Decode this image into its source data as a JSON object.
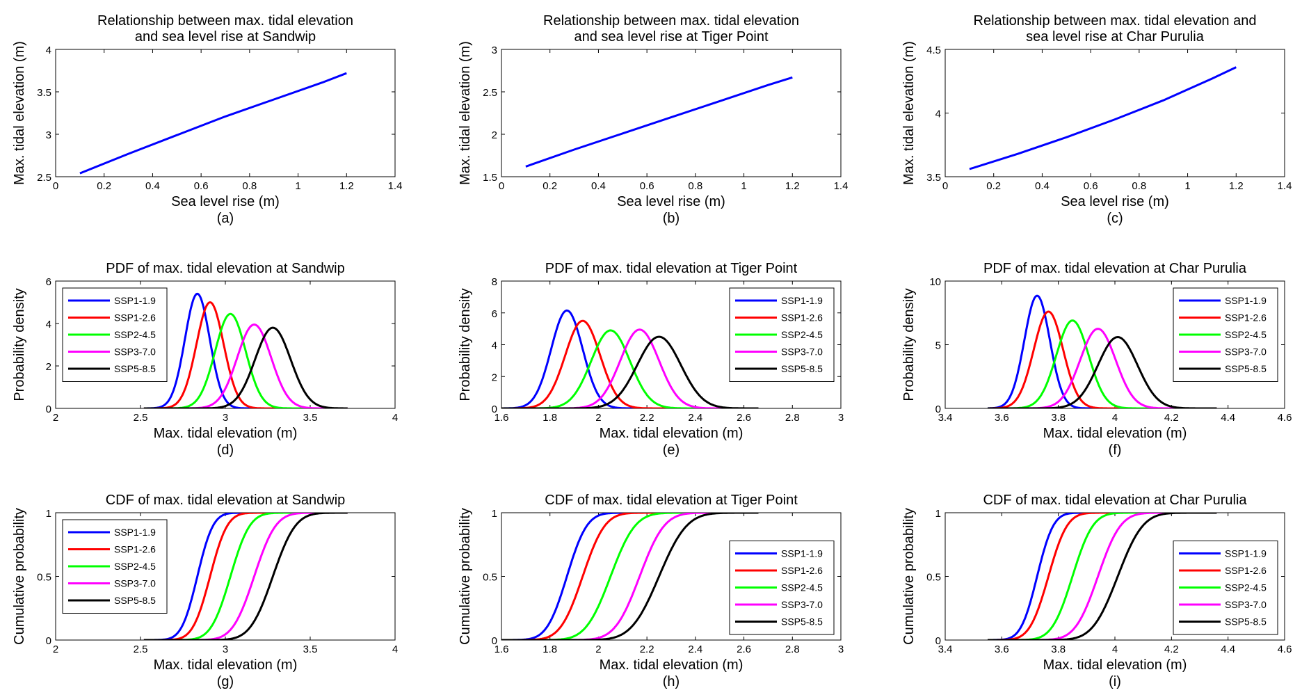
{
  "figure": {
    "background": "#ffffff"
  },
  "chart_data": [
    {
      "id": "a",
      "type": "line",
      "title_lines": [
        "Relationship between max. tidal elevation",
        "and sea level rise at Sandwip"
      ],
      "xlabel": "Sea level rise (m)",
      "ylabel": "Max. tidal elevation (m)",
      "panel_label": "(a)",
      "xlim": [
        0,
        1.4
      ],
      "ylim": [
        2.5,
        4
      ],
      "xticks": [
        0,
        0.2,
        0.4,
        0.6,
        0.8,
        1,
        1.2,
        1.4
      ],
      "yticks": [
        2.5,
        3,
        3.5,
        4
      ],
      "series": [
        {
          "color": "#0000ff",
          "x": [
            0.1,
            0.3,
            0.5,
            0.7,
            0.9,
            1.1,
            1.2
          ],
          "y": [
            2.54,
            2.77,
            2.99,
            3.21,
            3.41,
            3.61,
            3.72
          ]
        }
      ]
    },
    {
      "id": "b",
      "type": "line",
      "title_lines": [
        "Relationship between max. tidal elevation",
        "and sea level rise at Tiger Point"
      ],
      "xlabel": "Sea level rise (m)",
      "ylabel": "Max. tidal elevation (m)",
      "panel_label": "(b)",
      "xlim": [
        0,
        1.4
      ],
      "ylim": [
        1.5,
        3
      ],
      "xticks": [
        0,
        0.2,
        0.4,
        0.6,
        0.8,
        1,
        1.2,
        1.4
      ],
      "yticks": [
        1.5,
        2,
        2.5,
        3
      ],
      "series": [
        {
          "color": "#0000ff",
          "x": [
            0.1,
            0.3,
            0.5,
            0.7,
            0.9,
            1.1,
            1.2
          ],
          "y": [
            1.62,
            1.82,
            2.01,
            2.2,
            2.39,
            2.58,
            2.67
          ]
        }
      ]
    },
    {
      "id": "c",
      "type": "line",
      "title_lines": [
        "Relationship between max. tidal elevation and",
        "sea level rise at Char Purulia"
      ],
      "xlabel": "Sea level rise (m)",
      "ylabel": "Max. tidal elevation (m)",
      "panel_label": "(c)",
      "xlim": [
        0,
        1.4
      ],
      "ylim": [
        3.5,
        4.5
      ],
      "xticks": [
        0,
        0.2,
        0.4,
        0.6,
        0.8,
        1,
        1.2,
        1.4
      ],
      "yticks": [
        3.5,
        4,
        4.5
      ],
      "series": [
        {
          "color": "#0000ff",
          "x": [
            0.1,
            0.3,
            0.5,
            0.7,
            0.9,
            1.1,
            1.2
          ],
          "y": [
            3.56,
            3.68,
            3.81,
            3.95,
            4.1,
            4.27,
            4.36
          ]
        }
      ]
    },
    {
      "id": "d",
      "type": "line",
      "kind": "pdf",
      "title_lines": [
        "PDF of max. tidal elevation at Sandwip"
      ],
      "xlabel": "Max. tidal elevation (m)",
      "ylabel": "Probability density",
      "panel_label": "(d)",
      "xlim": [
        2,
        4
      ],
      "ylim": [
        0,
        6
      ],
      "xticks": [
        2,
        2.5,
        3,
        3.5,
        4
      ],
      "yticks": [
        0,
        2,
        4,
        6
      ],
      "legend_loc": "top-left",
      "series": [
        {
          "name": "SSP1-1.9",
          "color": "#0000ff",
          "mean": 2.835,
          "sd": 0.073,
          "peak": 5.4,
          "xrange": [
            2.52,
            3.72
          ]
        },
        {
          "name": "SSP1-2.6",
          "color": "#ff0000",
          "mean": 2.91,
          "sd": 0.08,
          "peak": 5.0,
          "xrange": [
            2.52,
            3.72
          ]
        },
        {
          "name": "SSP2-4.5",
          "color": "#00ff00",
          "mean": 3.03,
          "sd": 0.09,
          "peak": 4.45,
          "xrange": [
            2.52,
            3.72
          ]
        },
        {
          "name": "SSP3-7.0",
          "color": "#ff00ff",
          "mean": 3.17,
          "sd": 0.1,
          "peak": 3.95,
          "xrange": [
            2.52,
            3.72
          ]
        },
        {
          "name": "SSP5-8.5",
          "color": "#000000",
          "mean": 3.28,
          "sd": 0.105,
          "peak": 3.8,
          "xrange": [
            2.52,
            3.72
          ]
        }
      ]
    },
    {
      "id": "e",
      "type": "line",
      "kind": "pdf",
      "title_lines": [
        "PDF of max. tidal elevation at Tiger Point"
      ],
      "xlabel": "Max. tidal elevation (m)",
      "ylabel": "Probability density",
      "panel_label": "(e)",
      "xlim": [
        1.6,
        3
      ],
      "ylim": [
        0,
        8
      ],
      "xticks": [
        1.6,
        1.8,
        2,
        2.2,
        2.4,
        2.6,
        2.8,
        3
      ],
      "yticks": [
        0,
        2,
        4,
        6,
        8
      ],
      "legend_loc": "top-right",
      "series": [
        {
          "name": "SSP1-1.9",
          "color": "#0000ff",
          "mean": 1.87,
          "sd": 0.065,
          "peak": 6.15,
          "xrange": [
            1.6,
            2.66
          ]
        },
        {
          "name": "SSP1-2.6",
          "color": "#ff0000",
          "mean": 1.935,
          "sd": 0.072,
          "peak": 5.5,
          "xrange": [
            1.6,
            2.66
          ]
        },
        {
          "name": "SSP2-4.5",
          "color": "#00ff00",
          "mean": 2.05,
          "sd": 0.08,
          "peak": 4.9,
          "xrange": [
            1.6,
            2.66
          ]
        },
        {
          "name": "SSP3-7.0",
          "color": "#ff00ff",
          "mean": 2.17,
          "sd": 0.08,
          "peak": 4.95,
          "xrange": [
            1.6,
            2.66
          ]
        },
        {
          "name": "SSP5-8.5",
          "color": "#000000",
          "mean": 2.25,
          "sd": 0.09,
          "peak": 4.5,
          "xrange": [
            1.6,
            2.66
          ]
        }
      ]
    },
    {
      "id": "f",
      "type": "line",
      "kind": "pdf",
      "title_lines": [
        "PDF of max. tidal elevation at Char Purulia"
      ],
      "xlabel": "Max. tidal elevation (m)",
      "ylabel": "Probability density",
      "panel_label": "(f)",
      "xlim": [
        3.4,
        4.6
      ],
      "ylim": [
        0,
        10
      ],
      "xticks": [
        3.4,
        3.6,
        3.8,
        4,
        4.2,
        4.4,
        4.6
      ],
      "yticks": [
        0,
        5,
        10
      ],
      "legend_loc": "top-right",
      "series": [
        {
          "name": "SSP1-1.9",
          "color": "#0000ff",
          "mean": 3.725,
          "sd": 0.045,
          "peak": 8.85,
          "xrange": [
            3.55,
            4.36
          ]
        },
        {
          "name": "SSP1-2.6",
          "color": "#ff0000",
          "mean": 3.765,
          "sd": 0.052,
          "peak": 7.6,
          "xrange": [
            3.55,
            4.36
          ]
        },
        {
          "name": "SSP2-4.5",
          "color": "#00ff00",
          "mean": 3.85,
          "sd": 0.057,
          "peak": 6.9,
          "xrange": [
            3.55,
            4.36
          ]
        },
        {
          "name": "SSP3-7.0",
          "color": "#ff00ff",
          "mean": 3.94,
          "sd": 0.063,
          "peak": 6.25,
          "xrange": [
            3.55,
            4.36
          ]
        },
        {
          "name": "SSP5-8.5",
          "color": "#000000",
          "mean": 4.01,
          "sd": 0.07,
          "peak": 5.6,
          "xrange": [
            3.55,
            4.36
          ]
        }
      ]
    },
    {
      "id": "g",
      "type": "line",
      "kind": "cdf",
      "title_lines": [
        "CDF of max. tidal elevation at Sandwip"
      ],
      "xlabel": "Max. tidal elevation (m)",
      "ylabel": "Cumulative probability",
      "panel_label": "(g)",
      "xlim": [
        2,
        4
      ],
      "ylim": [
        0,
        1
      ],
      "xticks": [
        2,
        2.5,
        3,
        3.5,
        4
      ],
      "yticks": [
        0,
        0.5,
        1
      ],
      "legend_loc": "top-left",
      "series": [
        {
          "name": "SSP1-1.9",
          "color": "#0000ff",
          "mean": 2.835,
          "sd": 0.073,
          "xrange": [
            2.52,
            3.72
          ]
        },
        {
          "name": "SSP1-2.6",
          "color": "#ff0000",
          "mean": 2.91,
          "sd": 0.08,
          "xrange": [
            2.52,
            3.72
          ]
        },
        {
          "name": "SSP2-4.5",
          "color": "#00ff00",
          "mean": 3.03,
          "sd": 0.09,
          "xrange": [
            2.52,
            3.72
          ]
        },
        {
          "name": "SSP3-7.0",
          "color": "#ff00ff",
          "mean": 3.17,
          "sd": 0.1,
          "xrange": [
            2.52,
            3.72
          ]
        },
        {
          "name": "SSP5-8.5",
          "color": "#000000",
          "mean": 3.28,
          "sd": 0.105,
          "xrange": [
            2.52,
            3.72
          ]
        }
      ]
    },
    {
      "id": "h",
      "type": "line",
      "kind": "cdf",
      "title_lines": [
        "CDF of max. tidal elevation at Tiger Point"
      ],
      "xlabel": "Max. tidal elevation (m)",
      "ylabel": "Cumulative probability",
      "panel_label": "(h)",
      "xlim": [
        1.6,
        3
      ],
      "ylim": [
        0,
        1
      ],
      "xticks": [
        1.6,
        1.8,
        2,
        2.2,
        2.4,
        2.6,
        2.8,
        3
      ],
      "yticks": [
        0,
        0.5,
        1
      ],
      "legend_loc": "bottom-right",
      "series": [
        {
          "name": "SSP1-1.9",
          "color": "#0000ff",
          "mean": 1.87,
          "sd": 0.065,
          "xrange": [
            1.6,
            2.66
          ]
        },
        {
          "name": "SSP1-2.6",
          "color": "#ff0000",
          "mean": 1.935,
          "sd": 0.072,
          "xrange": [
            1.6,
            2.66
          ]
        },
        {
          "name": "SSP2-4.5",
          "color": "#00ff00",
          "mean": 2.05,
          "sd": 0.08,
          "xrange": [
            1.6,
            2.66
          ]
        },
        {
          "name": "SSP3-7.0",
          "color": "#ff00ff",
          "mean": 2.17,
          "sd": 0.08,
          "xrange": [
            1.6,
            2.66
          ]
        },
        {
          "name": "SSP5-8.5",
          "color": "#000000",
          "mean": 2.25,
          "sd": 0.09,
          "xrange": [
            1.6,
            2.66
          ]
        }
      ]
    },
    {
      "id": "i",
      "type": "line",
      "kind": "cdf",
      "title_lines": [
        "CDF of max. tidal elevation at Char Purulia"
      ],
      "xlabel": "Max. tidal elevation (m)",
      "ylabel": "Cumulative probability",
      "panel_label": "(i)",
      "xlim": [
        3.4,
        4.6
      ],
      "ylim": [
        0,
        1
      ],
      "xticks": [
        3.4,
        3.6,
        3.8,
        4,
        4.2,
        4.4,
        4.6
      ],
      "yticks": [
        0,
        0.5,
        1
      ],
      "legend_loc": "bottom-right",
      "series": [
        {
          "name": "SSP1-1.9",
          "color": "#0000ff",
          "mean": 3.725,
          "sd": 0.045,
          "xrange": [
            3.55,
            4.36
          ]
        },
        {
          "name": "SSP1-2.6",
          "color": "#ff0000",
          "mean": 3.765,
          "sd": 0.052,
          "xrange": [
            3.55,
            4.36
          ]
        },
        {
          "name": "SSP2-4.5",
          "color": "#00ff00",
          "mean": 3.85,
          "sd": 0.057,
          "xrange": [
            3.55,
            4.36
          ]
        },
        {
          "name": "SSP3-7.0",
          "color": "#ff00ff",
          "mean": 3.94,
          "sd": 0.063,
          "xrange": [
            3.55,
            4.36
          ]
        },
        {
          "name": "SSP5-8.5",
          "color": "#000000",
          "mean": 4.01,
          "sd": 0.07,
          "xrange": [
            3.55,
            4.36
          ]
        }
      ]
    }
  ]
}
